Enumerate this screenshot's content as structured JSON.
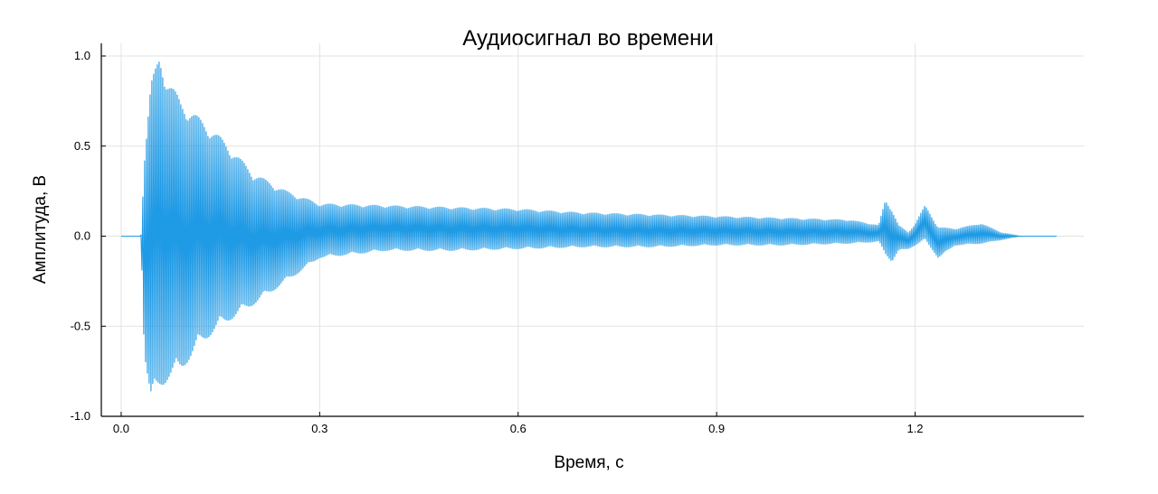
{
  "chart_data": {
    "type": "line",
    "title": "Аудиосигнал во времени",
    "xlabel": "Время, с",
    "ylabel": "Амплитуда, В",
    "xlim": [
      -0.03,
      1.455
    ],
    "ylim": [
      -1.0,
      1.0
    ],
    "x_ticks": [
      0.0,
      0.3,
      0.6,
      0.9,
      1.2
    ],
    "x_tick_labels": [
      "0.0",
      "0.3",
      "0.6",
      "0.9",
      "1.2"
    ],
    "y_ticks": [
      1.0,
      0.5,
      0.0,
      -0.5,
      -1.0
    ],
    "y_tick_labels": [
      "1.0",
      "0.5",
      "0.0",
      "-0.5",
      "-1.0"
    ],
    "grid": true,
    "legend": "none",
    "series": [
      {
        "color": "#1f9ae5",
        "envelope": {
          "t": [
            0.0,
            0.03,
            0.035,
            0.045,
            0.058,
            0.07,
            0.09,
            0.12,
            0.15,
            0.2,
            0.25,
            0.3,
            0.4,
            0.5,
            0.6,
            0.7,
            0.8,
            0.9,
            1.0,
            1.1,
            1.145,
            1.155,
            1.165,
            1.175,
            1.19,
            1.2,
            1.215,
            1.235,
            1.26,
            1.3,
            1.33,
            1.36,
            1.4,
            1.415
          ],
          "upper": [
            0.0,
            0.0,
            0.45,
            0.85,
            1.0,
            0.88,
            0.75,
            0.65,
            0.55,
            0.35,
            0.25,
            0.18,
            0.17,
            0.16,
            0.15,
            0.13,
            0.12,
            0.11,
            0.1,
            0.09,
            0.06,
            0.2,
            0.15,
            0.06,
            0.02,
            0.07,
            0.17,
            0.05,
            0.04,
            0.07,
            0.02,
            0.0,
            0.0,
            0.0
          ],
          "lower": [
            0.0,
            0.0,
            -0.65,
            -0.92,
            -0.85,
            -0.8,
            -0.75,
            -0.6,
            -0.5,
            -0.38,
            -0.25,
            -0.12,
            -0.08,
            -0.08,
            -0.07,
            -0.06,
            -0.06,
            -0.05,
            -0.05,
            -0.04,
            -0.03,
            -0.1,
            -0.14,
            -0.08,
            -0.07,
            -0.05,
            -0.02,
            -0.12,
            -0.05,
            -0.04,
            -0.02,
            0.0,
            0.0,
            0.0
          ]
        }
      }
    ]
  }
}
